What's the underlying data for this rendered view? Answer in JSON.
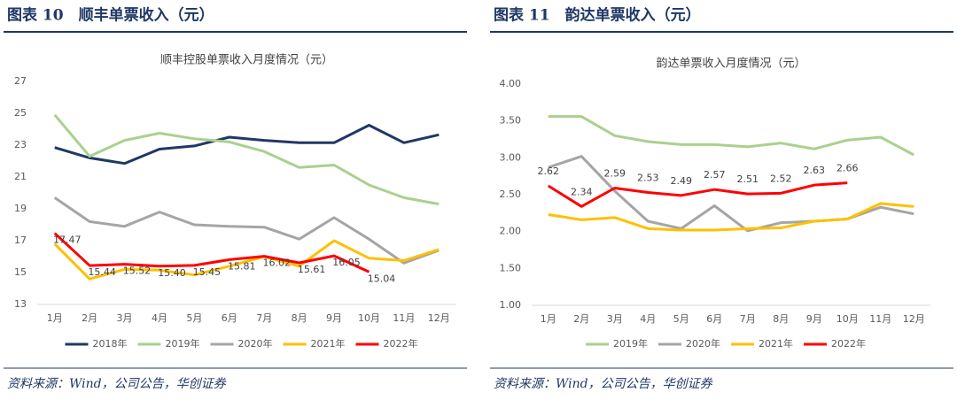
{
  "chart_data": [
    {
      "type": "line",
      "figure_title": "图表 10　顺丰单票收入（元）",
      "title": "顺丰控股单票收入月度情况（元）",
      "source": "资料来源：Wind，公司公告，华创证券",
      "categories": [
        "1月",
        "2月",
        "3月",
        "4月",
        "5月",
        "6月",
        "7月",
        "8月",
        "9月",
        "10月",
        "11月",
        "12月"
      ],
      "ylim": [
        13,
        27
      ],
      "yticks": [
        13,
        15,
        17,
        19,
        21,
        23,
        25,
        27
      ],
      "legend": "bottom",
      "series": [
        {
          "name": "2018年",
          "color": "#1f3864",
          "values": [
            22.85,
            22.2,
            21.85,
            22.75,
            22.95,
            23.5,
            23.3,
            23.15,
            23.15,
            24.25,
            23.15,
            23.65
          ]
        },
        {
          "name": "2019年",
          "color": "#a9d18e",
          "values": [
            24.9,
            22.3,
            23.3,
            23.75,
            23.4,
            23.2,
            22.6,
            21.6,
            21.75,
            20.5,
            19.7,
            19.3
          ]
        },
        {
          "name": "2020年",
          "color": "#a5a5a5",
          "values": [
            19.7,
            18.2,
            17.9,
            18.8,
            18.0,
            17.9,
            17.85,
            17.1,
            18.45,
            17.1,
            15.6,
            16.4
          ]
        },
        {
          "name": "2021年",
          "color": "#ffc000",
          "values": [
            16.8,
            14.6,
            15.2,
            15.15,
            14.85,
            15.4,
            16.0,
            15.4,
            17.0,
            15.9,
            15.75,
            16.45
          ]
        },
        {
          "name": "2022年",
          "color": "#ff0000",
          "values": [
            17.47,
            15.44,
            15.52,
            15.4,
            15.45,
            15.81,
            16.02,
            15.61,
            16.05,
            15.04,
            null,
            null
          ],
          "value_labels": [
            "17.47",
            "15.44",
            "15.52",
            "15.40",
            "15.45",
            "15.81",
            "16.02",
            "15.61",
            "16.05",
            "15.04",
            null,
            null
          ]
        }
      ]
    },
    {
      "type": "line",
      "figure_title": "图表 11　韵达单票收入（元）",
      "title": "韵达单票收入月度情况（元）",
      "source": "资料来源：Wind，公司公告，华创证券",
      "categories": [
        "1月",
        "2月",
        "3月",
        "4月",
        "5月",
        "6月",
        "7月",
        "8月",
        "9月",
        "10月",
        "11月",
        "12月"
      ],
      "ylim": [
        1,
        4
      ],
      "yticks": [
        {
          "value": 1,
          "label": "1.00"
        },
        {
          "value": 1.5,
          "label": "1.50"
        },
        {
          "value": 2,
          "label": "2.00"
        },
        {
          "value": 2.5,
          "label": "2.50"
        },
        {
          "value": 3,
          "label": "3.00"
        },
        {
          "value": 3.5,
          "label": "3.50"
        },
        {
          "value": 4,
          "label": "4.00"
        }
      ],
      "legend": "bottom",
      "series": [
        {
          "name": "2019年",
          "color": "#a9d18e",
          "values": [
            3.56,
            3.56,
            3.3,
            3.22,
            3.18,
            3.18,
            3.15,
            3.2,
            3.12,
            3.24,
            3.28,
            3.04
          ]
        },
        {
          "name": "2020年",
          "color": "#a5a5a5",
          "values": [
            2.87,
            3.02,
            2.55,
            2.14,
            2.04,
            2.35,
            2.01,
            2.12,
            2.14,
            2.17,
            2.33,
            2.24
          ]
        },
        {
          "name": "2021年",
          "color": "#ffc000",
          "values": [
            2.23,
            2.16,
            2.19,
            2.04,
            2.02,
            2.02,
            2.04,
            2.05,
            2.14,
            2.17,
            2.38,
            2.34
          ]
        },
        {
          "name": "2022年",
          "color": "#ff0000",
          "values": [
            2.62,
            2.34,
            2.59,
            2.53,
            2.49,
            2.57,
            2.51,
            2.52,
            2.63,
            2.66,
            null,
            null
          ],
          "value_labels": [
            "2.62",
            "2.34",
            "2.59",
            "2.53",
            "2.49",
            "2.57",
            "2.51",
            "2.52",
            "2.63",
            "2.66",
            null,
            null
          ]
        }
      ]
    }
  ]
}
